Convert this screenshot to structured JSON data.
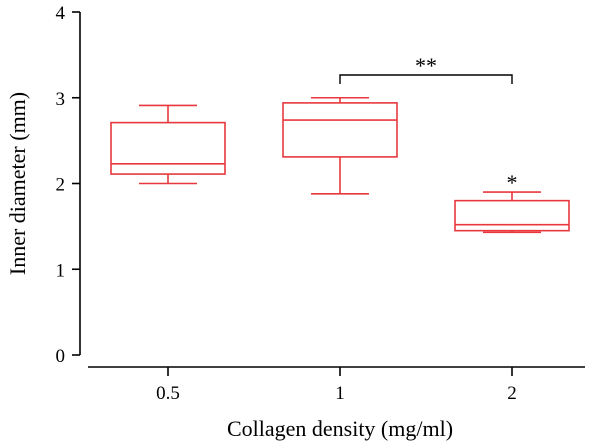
{
  "chart_data": {
    "type": "box",
    "title": "",
    "xlabel": "Collagen density (mg/ml)",
    "ylabel": "Inner diameter (mm)",
    "ylim": [
      0,
      4
    ],
    "yticks": [
      "0",
      "1",
      "2",
      "3",
      "4"
    ],
    "categories": [
      "0.5",
      "1",
      "2"
    ],
    "boxes": [
      {
        "category": "0.5",
        "min": 2.0,
        "q1": 2.11,
        "median": 2.23,
        "q3": 2.71,
        "max": 2.91,
        "marker": ""
      },
      {
        "category": "1",
        "min": 1.88,
        "q1": 2.31,
        "median": 2.74,
        "q3": 2.94,
        "max": 3.0,
        "marker": ""
      },
      {
        "category": "2",
        "min": 1.43,
        "q1": 1.45,
        "median": 1.52,
        "q3": 1.8,
        "max": 1.9,
        "marker": "*"
      }
    ],
    "significance": [
      {
        "from": "1",
        "to": "2",
        "label": "**"
      }
    ],
    "colors": {
      "box": "#e8383d",
      "axis": "#000000"
    },
    "grid": false,
    "legend": "none"
  }
}
